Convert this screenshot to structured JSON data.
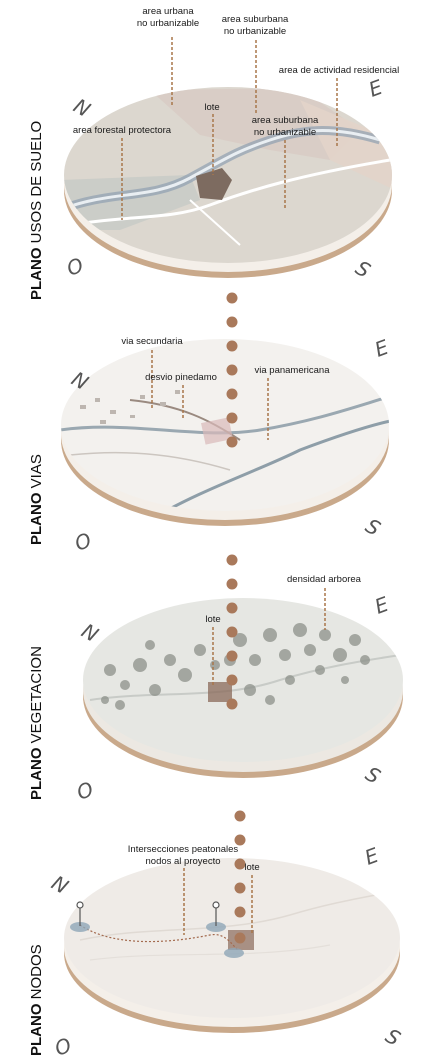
{
  "sections": [
    {
      "id": "usos",
      "title_bold": "PLANO",
      "title_rest": " USOS  DE SUELO",
      "labels": [
        "area urbana",
        "no urbanizable",
        "area suburbana",
        "no urbanizable",
        "area de actividad residencial",
        "lote",
        "area forestal protectora",
        "area suburbana",
        "no urbanizable"
      ],
      "compass": [
        "N",
        "E",
        "O",
        "S"
      ]
    },
    {
      "id": "vias",
      "title_bold": "PLANO",
      "title_rest": " VIAS",
      "labels": [
        "via secundaria",
        "desvio pinedamo",
        "via panamericana"
      ],
      "compass": [
        "N",
        "E",
        "O",
        "S"
      ]
    },
    {
      "id": "vegetacion",
      "title_bold": "PLANO",
      "title_rest": " VEGETACION",
      "labels": [
        "densidad arborea",
        "lote"
      ],
      "compass": [
        "N",
        "E",
        "O",
        "S"
      ]
    },
    {
      "id": "nodos",
      "title_bold": "PLANO",
      "title_rest": " NODOS",
      "labels": [
        "Intersecciones peatonales",
        "nodos al proyecto",
        "lote"
      ],
      "compass": [
        "N",
        "E",
        "O",
        "S"
      ]
    }
  ],
  "colors": {
    "disc_rim": "#c9a98b",
    "leader": "#a8764a",
    "dot": "#a9795b",
    "road": "#8e9ea8",
    "lote": "#8a6a5a"
  }
}
